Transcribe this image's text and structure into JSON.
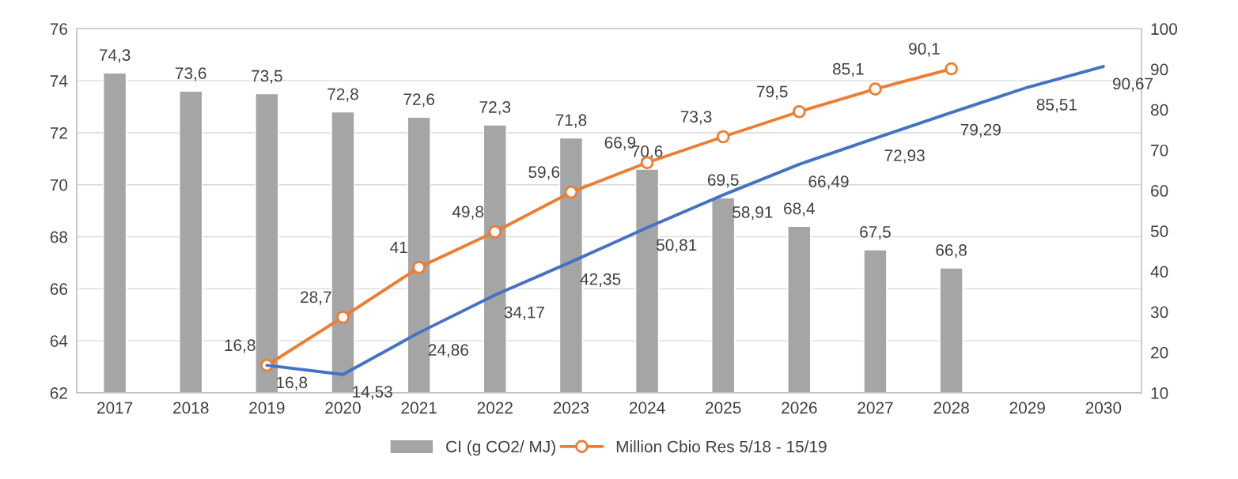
{
  "chart_data": {
    "type": "bar",
    "categories": [
      "2017",
      "2018",
      "2019",
      "2020",
      "2021",
      "2022",
      "2023",
      "2024",
      "2025",
      "2026",
      "2027",
      "2028",
      "2029",
      "2030"
    ],
    "series": [
      {
        "name": "CI (g CO2/ MJ)",
        "color": "#a5a5a5",
        "values": [
          74.3,
          73.6,
          73.5,
          72.8,
          72.6,
          72.3,
          71.8,
          70.6,
          69.5,
          68.4,
          67.5,
          66.8,
          null,
          null
        ],
        "value_labels": [
          "74,3",
          "73,6",
          "73,5",
          "72,8",
          "72,6",
          "72,3",
          "71,8",
          "70,6",
          "69,5",
          "68,4",
          "67,5",
          "66,8",
          null,
          null
        ]
      },
      {
        "name": "Million Cbio Res 5/18 - 15/19",
        "type": "line",
        "axis": "y2",
        "marker": "circle",
        "color": "#ed7d31",
        "values": [
          null,
          null,
          16.8,
          28.7,
          41,
          49.8,
          59.6,
          66.9,
          73.3,
          79.5,
          85.1,
          90.1,
          null,
          null
        ],
        "value_labels": [
          null,
          null,
          "16,8",
          "28,7",
          "41",
          "49,8",
          "59,6",
          "66,9",
          "73,3",
          "79,5",
          "85,1",
          "90,1",
          null,
          null
        ]
      },
      {
        "type": "line",
        "axis": "y2",
        "marker": "none",
        "color": "#4472c4",
        "values": [
          null,
          null,
          16.8,
          14.53,
          24.86,
          34.17,
          42.35,
          50.81,
          58.91,
          66.49,
          72.93,
          79.29,
          85.51,
          90.67
        ],
        "value_labels": [
          null,
          null,
          "16,8",
          "14,53",
          "24,86",
          "34,17",
          "42,35",
          "50,81",
          "58,91",
          "66,49",
          "72,93",
          "79,29",
          "85,51",
          "90,67"
        ]
      }
    ],
    "ylim": [
      62,
      76
    ],
    "yticks": [
      62,
      64,
      66,
      68,
      70,
      72,
      74,
      76
    ],
    "y2lim": [
      10,
      100
    ],
    "y2ticks": [
      10,
      20,
      30,
      40,
      50,
      60,
      70,
      80,
      90,
      100
    ],
    "grid": "y",
    "legend": "bottom"
  }
}
